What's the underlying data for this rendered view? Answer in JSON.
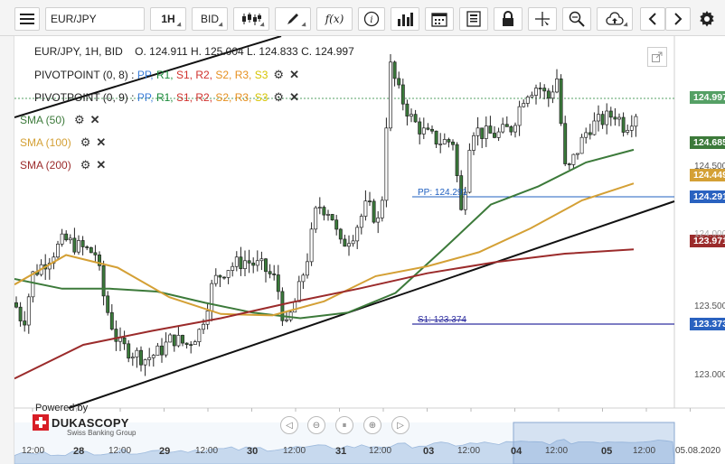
{
  "toolbar": {
    "symbol": "EUR/JPY",
    "timeframe": "1H",
    "side": "BID",
    "fx_label": "f(x)"
  },
  "chart": {
    "ohlc_line": "EUR/JPY, 1H, BID    O. 124.911 H. 125.004 L. 124.833 C. 124.997",
    "pivot1": {
      "name": "PIVOTPOINT (0, 8)",
      "sep": " : ",
      "pp": "PP,",
      "r1": " R1,",
      "s1": " S1,",
      "r2": " R2,",
      "s2": " S2,",
      "r3": " R3,",
      "s3": " S3"
    },
    "pivot2": {
      "name": "PIVOTPOINT (0, 9)",
      "sep": " : ",
      "pp": "PP,",
      "r1": " R1,",
      "s1": " S1,",
      "r2": " R2,",
      "s2": " S2,",
      "r3": " R3,",
      "s3": " S3"
    },
    "sma50": "SMA (50)",
    "sma100": "SMA (100)",
    "sma200": "SMA (200)",
    "colors": {
      "sma50": "#3c7a3a",
      "sma100": "#d4a035",
      "sma200": "#9b2b2b",
      "candle_up": "#ffffff",
      "candle_down": "#3a7a3a",
      "pp_line": "#2060c0",
      "s_line": "#3030a0"
    },
    "pp_label": "PP: 124.291",
    "s_label": "S1: 123.374",
    "price_tags": [
      {
        "value": "124.997",
        "color": "#55a065"
      },
      {
        "value": "124.685",
        "color": "#3c7a3a"
      },
      {
        "value": "124.449",
        "color": "#d4a035"
      },
      {
        "value": "124.291",
        "color": "#2a62c0"
      },
      {
        "value": "123.971",
        "color": "#9b2b2b"
      },
      {
        "value": "123.373",
        "color": "#2a62c0"
      }
    ],
    "y_ticks": [
      "124.500",
      "124.000",
      "123.500",
      "123.000"
    ],
    "x_labels": [
      "12:00",
      "28",
      "12:00",
      "29",
      "12:00",
      "30",
      "12:00",
      "31",
      "12:00",
      "03",
      "12:00",
      "04",
      "12:00",
      "05",
      "12:00",
      "05.08.2020"
    ],
    "powered_by": "Powered by",
    "brand": "DUKASCOPY",
    "brand_sub": "Swiss Banking Group"
  },
  "chart_data": {
    "type": "line",
    "title": "EUR/JPY, 1H, BID",
    "ylim": [
      122.85,
      125.5
    ],
    "series": [
      {
        "name": "SMA (50)",
        "values": [
          123.77,
          123.7,
          123.7,
          123.68,
          123.6,
          123.53,
          123.49,
          123.53,
          123.67,
          123.98,
          124.3,
          124.43,
          124.6,
          124.69
        ]
      },
      {
        "name": "SMA (100)",
        "values": [
          123.73,
          123.94,
          123.85,
          123.64,
          123.52,
          123.51,
          123.61,
          123.79,
          123.86,
          123.96,
          124.13,
          124.33,
          124.45
        ]
      },
      {
        "name": "SMA (200)",
        "values": [
          123.06,
          123.3,
          123.4,
          123.49,
          123.6,
          123.7,
          123.81,
          123.89,
          123.95,
          123.98
        ]
      }
    ],
    "pivot_levels": {
      "PP": 124.291,
      "S1": 123.374
    },
    "last_close": 124.997
  }
}
